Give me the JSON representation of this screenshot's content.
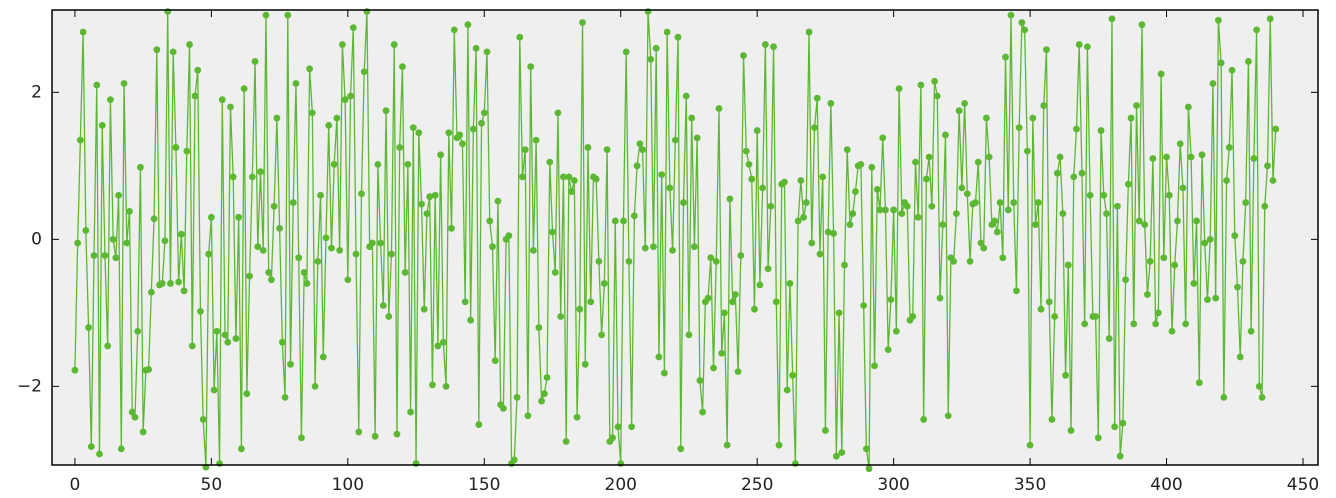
{
  "chart_data": {
    "type": "line",
    "xlim": [
      -8.4,
      455.5
    ],
    "ylim": [
      -3.07,
      3.12
    ],
    "xticks": [
      0,
      50,
      100,
      150,
      200,
      250,
      300,
      350,
      400,
      450
    ],
    "yticks": [
      {
        "value": -2,
        "label": "−2"
      },
      0,
      2
    ],
    "x": [
      0,
      1,
      2,
      3,
      4,
      5,
      6,
      7,
      8,
      9,
      10,
      11,
      12,
      13,
      14,
      15,
      16,
      17,
      18,
      19,
      20,
      21,
      22,
      23,
      24,
      25,
      26,
      27,
      28,
      29,
      30,
      31,
      32,
      33,
      34,
      35,
      36,
      37,
      38,
      39,
      40,
      41,
      42,
      43,
      44,
      45,
      46,
      47,
      48,
      49,
      50,
      51,
      52,
      53,
      54,
      55,
      56,
      57,
      58,
      59,
      60,
      61,
      62,
      63,
      64,
      65,
      66,
      67,
      68,
      69,
      70,
      71,
      72,
      73,
      74,
      75,
      76,
      77,
      78,
      79,
      80,
      81,
      82,
      83,
      84,
      85,
      86,
      87,
      88,
      89,
      90,
      91,
      92,
      93,
      94,
      95,
      96,
      97,
      98,
      99,
      100,
      101,
      102,
      103,
      104,
      105,
      106,
      107,
      108,
      109,
      110,
      111,
      112,
      113,
      114,
      115,
      116,
      117,
      118,
      119,
      120,
      121,
      122,
      123,
      124,
      125,
      126,
      127,
      128,
      129,
      130,
      131,
      132,
      133,
      134,
      135,
      136,
      137,
      138,
      139,
      140,
      141,
      142,
      143,
      144,
      145,
      146,
      147,
      148,
      149,
      150,
      151,
      152,
      153,
      154,
      155,
      156,
      157,
      158,
      159,
      160,
      161,
      162,
      163,
      164,
      165,
      166,
      167,
      168,
      169,
      170,
      171,
      172,
      173,
      174,
      175,
      176,
      177,
      178,
      179,
      180,
      181,
      182,
      183,
      184,
      185,
      186,
      187,
      188,
      189,
      190,
      191,
      192,
      193,
      194,
      195,
      196,
      197,
      198,
      199,
      200,
      201,
      202,
      203,
      204,
      205,
      206,
      207,
      208,
      209,
      210,
      211,
      212,
      213,
      214,
      215,
      216,
      217,
      218,
      219,
      220,
      221,
      222,
      223,
      224,
      225,
      226,
      227,
      228,
      229,
      230,
      231,
      232,
      233,
      234,
      235,
      236,
      237,
      238,
      239,
      240,
      241,
      242,
      243,
      244,
      245,
      246,
      247,
      248,
      249,
      250,
      251,
      252,
      253,
      254,
      255,
      256,
      257,
      258,
      259,
      260,
      261,
      262,
      263,
      264,
      265,
      266,
      267,
      268,
      269,
      270,
      271,
      272,
      273,
      274,
      275,
      276,
      277,
      278,
      279,
      280,
      281,
      282,
      283,
      284,
      285,
      286,
      287,
      288,
      289,
      290,
      291,
      292,
      293,
      294,
      295,
      296,
      297,
      298,
      299,
      300,
      301,
      302,
      303,
      304,
      305,
      306,
      307,
      308,
      309,
      310,
      311,
      312,
      313,
      314,
      315,
      316,
      317,
      318,
      319,
      320,
      321,
      322,
      323,
      324,
      325,
      326,
      327,
      328,
      329,
      330,
      331,
      332,
      333,
      334,
      335,
      336,
      337,
      338,
      339,
      340,
      341,
      342,
      343,
      344,
      345,
      346,
      347,
      348,
      349,
      350,
      351,
      352,
      353,
      354,
      355,
      356,
      357,
      358,
      359,
      360,
      361,
      362,
      363,
      364,
      365,
      366,
      367,
      368,
      369,
      370,
      371,
      372,
      373,
      374,
      375,
      376,
      377,
      378,
      379,
      380,
      381,
      382,
      383,
      384,
      385,
      386,
      387,
      388,
      389,
      390,
      391,
      392,
      393,
      394,
      395,
      396,
      397,
      398,
      399,
      400,
      401,
      402,
      403,
      404,
      405,
      406,
      407,
      408,
      409,
      410,
      411,
      412,
      413,
      414,
      415,
      416,
      417,
      418,
      419,
      420,
      421,
      422,
      423,
      424,
      425,
      426,
      427,
      428,
      429,
      430,
      431,
      432,
      433,
      434,
      435,
      436,
      437,
      438,
      439,
      440
    ],
    "series": [
      {
        "color": "#5cb833",
        "values": [
          -1.78,
          -0.05,
          1.35,
          2.82,
          0.12,
          -1.2,
          -2.82,
          -0.22,
          2.1,
          -2.92,
          1.55,
          -0.22,
          -1.45,
          1.9,
          0.0,
          -0.25,
          0.6,
          -2.85,
          2.12,
          -0.05,
          0.38,
          -2.35,
          -2.42,
          -1.25,
          0.98,
          -2.62,
          -1.78,
          -1.77,
          -0.72,
          0.28,
          2.58,
          -0.62,
          -0.6,
          -0.02,
          3.1,
          -0.6,
          2.55,
          1.25,
          -0.58,
          0.07,
          -0.7,
          1.2,
          2.65,
          -1.45,
          1.95,
          2.3,
          -0.98,
          -2.45,
          -3.1,
          -0.2,
          0.3,
          -2.05,
          -1.25,
          -3.05,
          1.9,
          -1.3,
          -1.4,
          1.8,
          0.85,
          -1.35,
          0.3,
          -2.85,
          2.05,
          -2.1,
          -0.5,
          0.85,
          2.42,
          -0.1,
          0.92,
          -0.15,
          3.05,
          -0.45,
          -0.55,
          0.45,
          1.65,
          0.15,
          -1.4,
          -2.15,
          3.05,
          -1.7,
          0.5,
          2.12,
          -0.25,
          -2.7,
          -0.45,
          -0.6,
          2.32,
          1.72,
          -2.0,
          -0.3,
          0.6,
          -1.6,
          0.02,
          1.55,
          -0.12,
          1.02,
          1.65,
          -0.15,
          2.65,
          1.9,
          -0.55,
          1.95,
          2.88,
          -0.2,
          -2.62,
          0.62,
          2.28,
          3.1,
          -0.1,
          -0.05,
          -2.68,
          1.02,
          -0.05,
          -0.9,
          1.75,
          -1.05,
          -0.2,
          2.65,
          -2.65,
          1.25,
          2.35,
          -0.45,
          1.02,
          -2.35,
          1.52,
          -3.05,
          1.45,
          0.48,
          -0.95,
          0.35,
          0.58,
          -1.98,
          0.6,
          -1.45,
          1.15,
          -1.4,
          -2.0,
          1.45,
          0.15,
          2.85,
          1.38,
          1.42,
          1.3,
          -0.85,
          2.92,
          -1.1,
          1.5,
          2.6,
          -2.52,
          1.58,
          1.72,
          2.55,
          0.25,
          -0.1,
          -1.65,
          0.52,
          -2.25,
          -2.3,
          0.0,
          0.05,
          -3.05,
          -3.0,
          -2.15,
          2.75,
          0.85,
          1.22,
          -2.4,
          2.35,
          -0.15,
          1.35,
          -1.2,
          -2.2,
          -2.1,
          -1.88,
          1.05,
          0.1,
          -0.45,
          1.72,
          -1.05,
          0.85,
          -2.75,
          0.85,
          0.65,
          0.8,
          -2.42,
          -0.95,
          2.95,
          -1.7,
          1.25,
          -0.85,
          0.85,
          0.82,
          -0.3,
          -1.3,
          -0.6,
          1.22,
          -2.75,
          -2.7,
          0.25,
          -2.55,
          -3.05,
          0.25,
          2.55,
          -0.3,
          -2.55,
          0.32,
          1.0,
          1.3,
          1.22,
          -0.12,
          3.1,
          2.45,
          -0.1,
          2.6,
          -1.6,
          0.88,
          -1.82,
          2.82,
          0.7,
          -0.15,
          1.35,
          2.75,
          -2.85,
          0.5,
          1.95,
          -1.3,
          1.65,
          -0.1,
          1.38,
          -1.92,
          -2.35,
          -0.85,
          -0.8,
          -0.25,
          -1.75,
          -0.3,
          1.78,
          -1.55,
          -1.0,
          -2.8,
          0.55,
          -0.85,
          -0.75,
          -1.8,
          -0.22,
          2.5,
          1.2,
          1.02,
          0.82,
          -0.95,
          1.48,
          -0.62,
          0.7,
          2.65,
          -0.4,
          0.45,
          2.62,
          -0.85,
          -2.8,
          0.75,
          0.78,
          -2.05,
          -0.6,
          -1.85,
          -3.05,
          0.25,
          0.8,
          0.3,
          0.5,
          2.82,
          -0.05,
          1.52,
          1.92,
          -0.2,
          0.85,
          -2.6,
          0.1,
          1.85,
          0.08,
          -2.95,
          -1.0,
          -2.9,
          -0.35,
          1.22,
          0.2,
          0.35,
          0.65,
          1.0,
          1.02,
          -0.9,
          -2.85,
          -3.12,
          0.98,
          -1.72,
          0.68,
          0.4,
          1.38,
          0.4,
          -1.5,
          -0.82,
          0.4,
          -1.25,
          2.05,
          0.35,
          0.5,
          0.45,
          -1.1,
          -1.05,
          1.05,
          0.3,
          2.1,
          -2.45,
          0.82,
          1.12,
          0.45,
          2.15,
          1.95,
          -0.8,
          0.2,
          1.42,
          -2.4,
          -0.25,
          -0.3,
          0.35,
          1.75,
          0.7,
          1.85,
          0.62,
          -0.3,
          0.48,
          0.5,
          1.05,
          -0.05,
          -0.12,
          1.65,
          1.12,
          0.2,
          0.25,
          0.1,
          0.5,
          -0.25,
          2.48,
          0.4,
          3.05,
          0.5,
          -0.7,
          1.52,
          2.95,
          2.85,
          1.2,
          -2.8,
          1.65,
          0.2,
          0.5,
          -0.95,
          1.82,
          2.58,
          -0.85,
          -2.45,
          -1.05,
          0.9,
          1.12,
          0.35,
          -1.85,
          -0.35,
          -2.6,
          0.85,
          1.5,
          2.65,
          0.9,
          -1.15,
          2.62,
          0.6,
          -1.05,
          -1.05,
          -2.7,
          1.48,
          0.6,
          0.35,
          -1.35,
          3.0,
          -2.55,
          0.45,
          -2.95,
          -2.5,
          -0.55,
          0.75,
          1.65,
          -1.15,
          1.82,
          0.25,
          2.92,
          0.2,
          -0.75,
          -0.3,
          1.1,
          -1.15,
          -1.0,
          2.25,
          -0.25,
          1.12,
          0.6,
          -1.25,
          -0.35,
          0.25,
          1.3,
          0.7,
          -1.15,
          1.8,
          1.12,
          -0.6,
          0.25,
          -1.95,
          1.15,
          -0.05,
          -0.82,
          0.0,
          2.12,
          -0.8,
          2.98,
          2.4,
          -2.15,
          0.8,
          1.25,
          2.3,
          0.05,
          -0.65,
          -1.6,
          -0.3,
          0.5,
          2.42,
          -1.25,
          1.1,
          2.85,
          -2.0,
          -2.15,
          0.45,
          1.0,
          3.0,
          0.8,
          1.5
        ]
      }
    ]
  }
}
